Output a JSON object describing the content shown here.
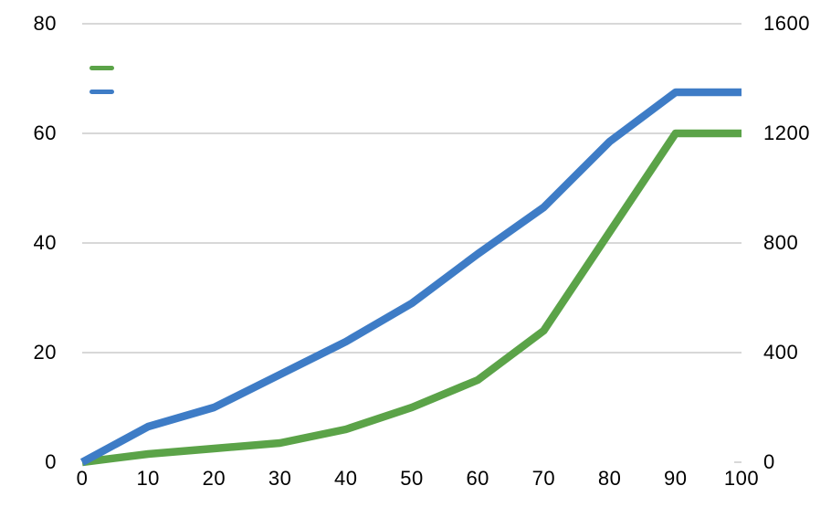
{
  "chart_data": {
    "type": "line",
    "title": "",
    "x": [
      0,
      10,
      20,
      30,
      40,
      50,
      60,
      70,
      80,
      90,
      100
    ],
    "x_axis": {
      "ticks": [
        0,
        10,
        20,
        30,
        40,
        50,
        60,
        70,
        80,
        90,
        100
      ],
      "range": [
        0,
        100
      ],
      "label": ""
    },
    "left_axis": {
      "ticks": [
        0,
        20,
        40,
        60,
        80
      ],
      "range": [
        0,
        80
      ],
      "label": ""
    },
    "right_axis": {
      "ticks": [
        0,
        400,
        800,
        1200,
        1600
      ],
      "range": [
        0,
        1600
      ],
      "label": ""
    },
    "grid": "horizontal-only",
    "legend_position": "top-left",
    "series": [
      {
        "name": "green-series",
        "color": "#5ba348",
        "axis_note": "plateaus at 60 on left scale / 1200 on right scale",
        "values_left_scale": [
          0,
          1.5,
          2.5,
          3.5,
          6,
          10,
          15,
          24,
          42,
          60,
          60
        ],
        "values_right_scale": [
          0,
          30,
          50,
          70,
          120,
          200,
          300,
          480,
          840,
          1200,
          1200
        ]
      },
      {
        "name": "blue-series",
        "axis_note": "plateaus at 67.5 on left scale / 1350 on right scale",
        "color": "#3e7cc6",
        "values_left_scale": [
          0,
          6.5,
          10,
          16,
          22,
          29,
          38,
          46.5,
          58.5,
          67.5,
          67.5
        ],
        "values_right_scale": [
          0,
          130,
          200,
          320,
          440,
          580,
          760,
          930,
          1170,
          1350,
          1350
        ]
      }
    ]
  },
  "legend": {
    "items": [
      {
        "label": "",
        "swatch_color": "#5ba348"
      },
      {
        "label": "",
        "swatch_color": "#3e7cc6"
      }
    ]
  },
  "colors": {
    "gridline": "#cbcbcb",
    "text": "#000000",
    "background": "#ffffff"
  }
}
